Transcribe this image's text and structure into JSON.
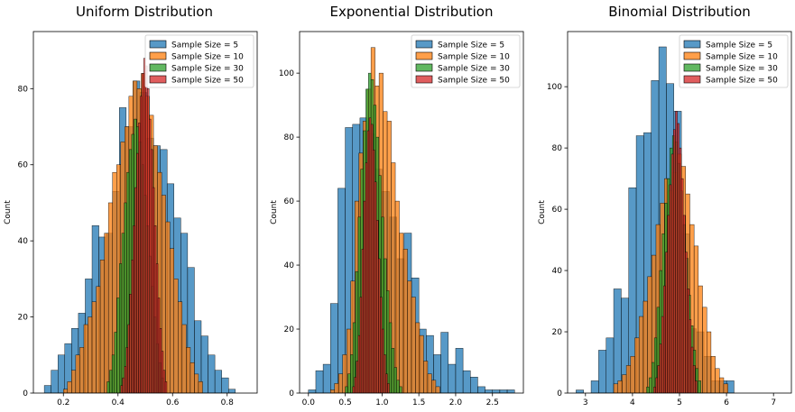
{
  "figure": {
    "background": "#ffffff"
  },
  "legend_labels": [
    "Sample Size = 5",
    "Sample Size = 10",
    "Sample Size = 30",
    "Sample Size = 50"
  ],
  "series_colors": [
    "#1f77b4",
    "#ff7f0e",
    "#2ca02c",
    "#d62728"
  ],
  "chart_data": [
    {
      "type": "bar",
      "title": "Uniform Distribution",
      "xlabel": "",
      "ylabel": "Count",
      "xlim": [
        0.09,
        0.91
      ],
      "ylim": [
        0,
        95
      ],
      "xticks": [
        0.2,
        0.4,
        0.6,
        0.8
      ],
      "xtick_labels": [
        "0.2",
        "0.4",
        "0.6",
        "0.8"
      ],
      "yticks": [
        0,
        20,
        40,
        60,
        80
      ],
      "ytick_labels": [
        "0",
        "20",
        "40",
        "60",
        "80"
      ],
      "legend": "top-right",
      "series": [
        {
          "name": "Sample Size = 5",
          "bin_start": 0.13,
          "bin_width": 0.025,
          "counts": [
            2,
            6,
            10,
            13,
            17,
            21,
            30,
            44,
            41,
            42,
            53,
            75,
            70,
            82,
            79,
            67,
            65,
            64,
            55,
            46,
            42,
            33,
            19,
            15,
            10,
            6,
            4,
            1
          ]
        },
        {
          "name": "Sample Size = 10",
          "bin_start": 0.2,
          "bin_width": 0.015,
          "counts": [
            1,
            3,
            6,
            10,
            12,
            18,
            20,
            24,
            28,
            35,
            42,
            50,
            58,
            60,
            66,
            70,
            78,
            82,
            80,
            84,
            78,
            73,
            65,
            58,
            52,
            45,
            38,
            30,
            24,
            18,
            12,
            8,
            5,
            3
          ]
        },
        {
          "name": "Sample Size = 30",
          "bin_start": 0.36,
          "bin_width": 0.009,
          "counts": [
            3,
            6,
            10,
            16,
            25,
            34,
            42,
            50,
            58,
            64,
            68,
            72,
            70,
            66,
            60,
            52,
            44,
            36,
            28,
            20,
            13,
            8,
            4
          ]
        },
        {
          "name": "Sample Size = 50",
          "bin_start": 0.41,
          "bin_width": 0.0065,
          "counts": [
            2,
            4,
            7,
            12,
            18,
            26,
            35,
            44,
            54,
            63,
            71,
            78,
            84,
            88,
            86,
            80,
            72,
            64,
            54,
            44,
            34,
            25,
            17,
            11,
            6,
            3
          ]
        }
      ]
    },
    {
      "type": "bar",
      "title": "Exponential Distribution",
      "xlabel": "",
      "ylabel": "Count",
      "xlim": [
        -0.12,
        2.92
      ],
      "ylim": [
        0,
        113
      ],
      "xticks": [
        0.0,
        0.5,
        1.0,
        1.5,
        2.0,
        2.5
      ],
      "xtick_labels": [
        "0.0",
        "0.5",
        "1.0",
        "1.5",
        "2.0",
        "2.5"
      ],
      "yticks": [
        0,
        20,
        40,
        60,
        80,
        100
      ],
      "ytick_labels": [
        "0",
        "20",
        "40",
        "60",
        "80",
        "100"
      ],
      "legend": "top-right",
      "series": [
        {
          "name": "Sample Size = 5",
          "bin_start": 0.0,
          "bin_width": 0.1,
          "counts": [
            1,
            7,
            9,
            28,
            64,
            83,
            84,
            86,
            81,
            70,
            63,
            55,
            42,
            50,
            36,
            20,
            18,
            12,
            19,
            9,
            14,
            7,
            5,
            2,
            1,
            1,
            1,
            1
          ]
        },
        {
          "name": "Sample Size = 10",
          "bin_start": 0.3,
          "bin_width": 0.055,
          "counts": [
            1,
            3,
            6,
            12,
            20,
            35,
            60,
            75,
            85,
            95,
            108,
            96,
            100,
            88,
            85,
            72,
            60,
            50,
            45,
            35,
            30,
            22,
            18,
            10,
            6,
            4,
            2
          ]
        },
        {
          "name": "Sample Size = 30",
          "bin_start": 0.5,
          "bin_width": 0.035,
          "counts": [
            2,
            6,
            12,
            22,
            38,
            55,
            70,
            82,
            95,
            100,
            98,
            90,
            80,
            68,
            55,
            42,
            32,
            22,
            14,
            8,
            4,
            2
          ]
        },
        {
          "name": "Sample Size = 50",
          "bin_start": 0.6,
          "bin_width": 0.025,
          "counts": [
            2,
            5,
            10,
            18,
            30,
            45,
            60,
            72,
            82,
            86,
            84,
            76,
            66,
            54,
            42,
            30,
            20,
            12,
            6,
            3
          ]
        }
      ]
    },
    {
      "type": "bar",
      "title": "Binomial Distribution",
      "xlabel": "",
      "ylabel": "Count",
      "xlim": [
        2.62,
        7.38
      ],
      "ylim": [
        0,
        118
      ],
      "xticks": [
        3,
        4,
        5,
        6,
        7
      ],
      "xtick_labels": [
        "3",
        "4",
        "5",
        "6",
        "7"
      ],
      "yticks": [
        0,
        20,
        40,
        60,
        80,
        100
      ],
      "ytick_labels": [
        "0",
        "20",
        "40",
        "60",
        "80",
        "100"
      ],
      "legend": "top-right",
      "series": [
        {
          "name": "Sample Size = 5",
          "bin_start": 2.8,
          "bin_width": 0.16,
          "counts": [
            1,
            0,
            4,
            14,
            18,
            34,
            31,
            67,
            84,
            85,
            102,
            113,
            101,
            92,
            52,
            21,
            20,
            12,
            4,
            4,
            4
          ]
        },
        {
          "name": "Sample Size = 10",
          "bin_start": 3.6,
          "bin_width": 0.09,
          "counts": [
            3,
            4,
            6,
            9,
            12,
            18,
            25,
            30,
            38,
            45,
            55,
            62,
            70,
            66,
            72,
            78,
            74,
            65,
            55,
            48,
            35,
            28,
            20,
            12,
            8,
            5,
            3
          ]
        },
        {
          "name": "Sample Size = 30",
          "bin_start": 4.3,
          "bin_width": 0.055,
          "counts": [
            2,
            5,
            10,
            18,
            28,
            40,
            52,
            62,
            70,
            80,
            84,
            82,
            75,
            66,
            55,
            44,
            32,
            22,
            14,
            8,
            4
          ]
        },
        {
          "name": "Sample Size = 50",
          "bin_start": 4.45,
          "bin_width": 0.042,
          "counts": [
            2,
            5,
            9,
            16,
            25,
            35,
            46,
            58,
            68,
            78,
            86,
            92,
            88,
            80,
            70,
            58,
            46,
            34,
            24,
            15,
            9,
            4
          ]
        }
      ]
    }
  ]
}
